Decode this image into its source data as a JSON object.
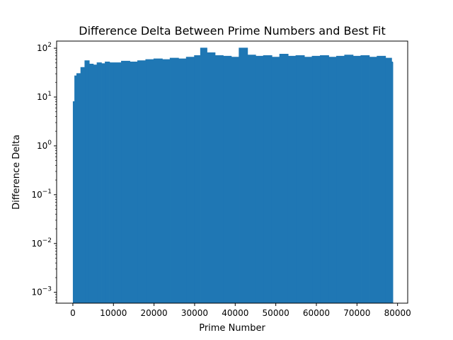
{
  "chart_data": {
    "type": "area",
    "title": "Difference Delta Between Prime Numbers and Best Fit",
    "xlabel": "Prime Number",
    "ylabel": "Difference Delta",
    "xlim": [
      -4000,
      82500
    ],
    "ylim": [
      0.0006,
      140
    ],
    "yscale": "log",
    "x_ticks": [
      0,
      10000,
      20000,
      30000,
      40000,
      50000,
      60000,
      70000,
      80000
    ],
    "x_tick_labels": [
      "0",
      "10000",
      "20000",
      "30000",
      "40000",
      "50000",
      "60000",
      "70000",
      "80000"
    ],
    "y_ticks": [
      0.001,
      0.01,
      0.1,
      1,
      10,
      100
    ],
    "y_tick_labels": [
      "10^-3",
      "10^-2",
      "10^-1",
      "10^0",
      "10^1",
      "10^2"
    ],
    "grid": false,
    "color": "#1f77b4",
    "series": [
      {
        "x": [
          0,
          500,
          1000,
          2000,
          3000,
          4000,
          5000,
          6000,
          7000,
          8000,
          9000,
          10000,
          12000,
          14000,
          16000,
          18000,
          20000,
          22000,
          24000,
          26000,
          28000,
          30000,
          31500,
          33000,
          35000,
          37000,
          39000,
          41000,
          43000,
          45000,
          47000,
          49000,
          51000,
          53000,
          55000,
          57000,
          59000,
          61000,
          63000,
          65000,
          67000,
          69000,
          71000,
          73000,
          75000,
          77000,
          78500
        ],
        "values": [
          8,
          27,
          30,
          40,
          55,
          47,
          45,
          50,
          48,
          52,
          50,
          50,
          54,
          52,
          55,
          58,
          60,
          58,
          62,
          60,
          65,
          70,
          100,
          80,
          70,
          68,
          65,
          100,
          72,
          68,
          70,
          65,
          75,
          68,
          70,
          65,
          68,
          70,
          65,
          68,
          72,
          68,
          70,
          65,
          68,
          62,
          52
        ]
      }
    ]
  }
}
